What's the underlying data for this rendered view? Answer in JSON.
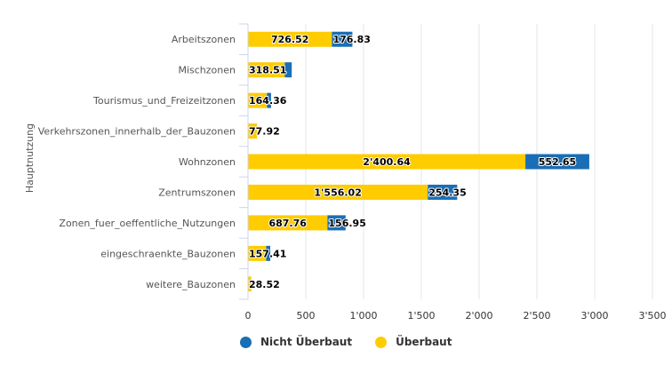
{
  "chart_data": {
    "type": "bar",
    "orientation": "horizontal",
    "stacked": true,
    "title": "",
    "xlabel": "",
    "ylabel": "Hauptnutzung",
    "categories": [
      "Arbeitszonen",
      "Mischzonen",
      "Tourismus_und_Freizeitzonen",
      "Verkehrszonen_innerhalb_der_Bauzonen",
      "Wohnzonen",
      "Zentrumszonen",
      "Zonen_fuer_oeffentliche_Nutzungen",
      "eingeschraenkte_Bauzonen",
      "weitere_Bauzonen"
    ],
    "series": [
      {
        "name": "Überbaut",
        "color": "#FFCC00",
        "values": [
          726.52,
          318.51,
          164.36,
          77.92,
          2400.64,
          1556.02,
          687.76,
          157.41,
          28.52
        ],
        "labels": [
          "726.52",
          "318.51",
          "164.36",
          "77.92",
          "2'400.64",
          "1'556.02",
          "687.76",
          "157.41",
          "28.52"
        ]
      },
      {
        "name": "Nicht Überbaut",
        "color": "#1A6EB5",
        "values": [
          176.83,
          60,
          35,
          0,
          552.65,
          254.35,
          156.95,
          35,
          0
        ],
        "labels": [
          "176.83",
          "",
          "",
          "",
          "552.65",
          "254.35",
          "156.95",
          "",
          ""
        ]
      }
    ],
    "xlim": [
      0,
      3500
    ],
    "xticks": [
      0,
      500,
      1000,
      1500,
      2000,
      2500,
      3000,
      3500
    ],
    "xtick_labels": [
      "0",
      "500",
      "1'000",
      "1'500",
      "2'000",
      "2'500",
      "3'000",
      "3'500"
    ],
    "grid": true,
    "legend": {
      "position": "bottom-left",
      "entries": [
        {
          "name": "Nicht Überbaut",
          "color": "#1A6EB5"
        },
        {
          "name": "Überbaut",
          "color": "#FFCC00"
        }
      ]
    }
  }
}
